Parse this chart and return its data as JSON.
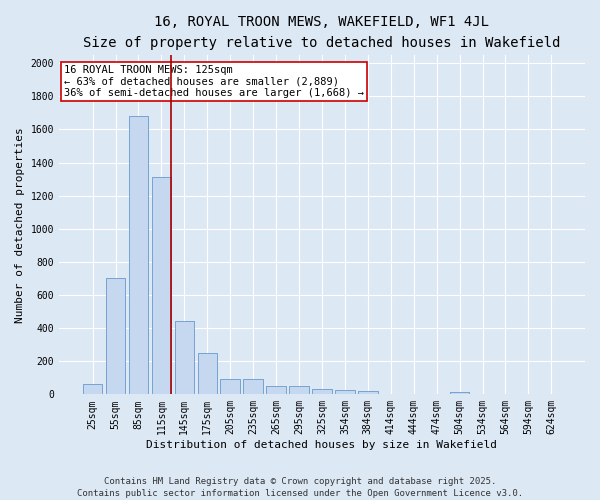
{
  "title": "16, ROYAL TROON MEWS, WAKEFIELD, WF1 4JL",
  "subtitle": "Size of property relative to detached houses in Wakefield",
  "xlabel": "Distribution of detached houses by size in Wakefield",
  "ylabel": "Number of detached properties",
  "bar_color": "#c5d8f0",
  "bar_edge_color": "#6699cc",
  "background_color": "#dde8f5",
  "grid_color": "#ffffff",
  "categories": [
    "25sqm",
    "55sqm",
    "85sqm",
    "115sqm",
    "145sqm",
    "175sqm",
    "205sqm",
    "235sqm",
    "265sqm",
    "295sqm",
    "325sqm",
    "354sqm",
    "384sqm",
    "414sqm",
    "444sqm",
    "474sqm",
    "504sqm",
    "534sqm",
    "564sqm",
    "594sqm",
    "624sqm"
  ],
  "values": [
    65,
    700,
    1680,
    1310,
    445,
    250,
    95,
    90,
    50,
    50,
    30,
    25,
    20,
    0,
    0,
    0,
    15,
    0,
    0,
    0,
    0
  ],
  "vline_x": 3.42,
  "vline_color": "#aa0000",
  "annotation_text": "16 ROYAL TROON MEWS: 125sqm\n← 63% of detached houses are smaller (2,889)\n36% of semi-detached houses are larger (1,668) →",
  "ylim": [
    0,
    2050
  ],
  "yticks": [
    0,
    200,
    400,
    600,
    800,
    1000,
    1200,
    1400,
    1600,
    1800,
    2000
  ],
  "footer_line1": "Contains HM Land Registry data © Crown copyright and database right 2025.",
  "footer_line2": "Contains public sector information licensed under the Open Government Licence v3.0.",
  "title_fontsize": 10,
  "subtitle_fontsize": 9,
  "annotation_fontsize": 7.5,
  "tick_fontsize": 7,
  "ylabel_fontsize": 8,
  "xlabel_fontsize": 8,
  "footer_fontsize": 6.5
}
